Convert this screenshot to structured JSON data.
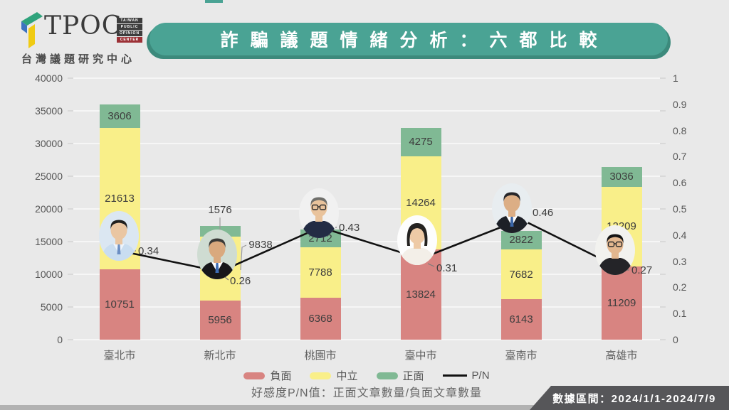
{
  "logo": {
    "acronym": "TPOC",
    "stack_lines": [
      "TAIWAN",
      "PUBLIC",
      "OPINION",
      "CENTER"
    ],
    "stack_colors": [
      "#3d3d3d",
      "#3d3d3d",
      "#3d3d3d",
      "#9c3136"
    ],
    "subtitle": "台灣議題研究中心",
    "mark_colors": {
      "green": "#2fa37c",
      "blue": "#3d74c0",
      "yellow": "#f0cb13"
    }
  },
  "title": {
    "text": "詐騙議題情緒分析：六都比較",
    "bg": "#4aa394",
    "shadow": "#3c8a7c",
    "color": "#ffffff"
  },
  "legend": {
    "items": [
      {
        "label": "負面",
        "type": "swatch",
        "color": "#d88481"
      },
      {
        "label": "中立",
        "type": "swatch",
        "color": "#f9ef89"
      },
      {
        "label": "正面",
        "type": "swatch",
        "color": "#80b994"
      },
      {
        "label": "P/N",
        "type": "line",
        "color": "#111111"
      }
    ]
  },
  "caption": "好感度P/N值：正面文章數量/負面文章數量",
  "banner": {
    "text": "數據區間：2024/1/1-2024/7/9",
    "bg": "#565659",
    "color": "#ffffff"
  },
  "colors": {
    "background": "#e9e9e9",
    "grid": "#f6f6f6",
    "axis_text": "#555555",
    "bottom_strip": "#b2b2b2"
  },
  "chart_data": {
    "type": "bar",
    "subtype": "stacked-bar-with-line",
    "title": "詐騙議題情緒分析：六都比較",
    "categories": [
      "臺北市",
      "新北市",
      "桃園市",
      "臺中市",
      "臺南市",
      "高雄市"
    ],
    "series": [
      {
        "name": "負面",
        "color": "#d88481",
        "values": [
          10751,
          5956,
          6368,
          13824,
          6143,
          11209
        ]
      },
      {
        "name": "中立",
        "color": "#f9ef89",
        "values": [
          21613,
          9838,
          7788,
          14264,
          7682,
          12209
        ]
      },
      {
        "name": "正面",
        "color": "#80b994",
        "values": [
          3606,
          1576,
          2712,
          4275,
          2822,
          3036
        ]
      }
    ],
    "line": {
      "name": "P/N",
      "color": "#111111",
      "values": [
        0.34,
        0.26,
        0.43,
        0.31,
        0.46,
        0.27
      ]
    },
    "left_axis": {
      "min": 0,
      "max": 40000,
      "step": 5000
    },
    "right_axis": {
      "min": 0,
      "max": 1,
      "step": 0.1
    },
    "grid": true,
    "legend_position": "bottom",
    "avatars": [
      {
        "name": "taipei-mayor-photo",
        "bg": "#dbe7f2",
        "hair": "#1f1f1f",
        "skin": "#eac6a2",
        "suit": "#c9ddf0",
        "shirt": "#eef4fb",
        "tie": "#6c8fc3",
        "glasses": false,
        "bob": false
      },
      {
        "name": "new-taipei-mayor-photo",
        "bg": "#cfdcd2",
        "hair": "#3a3a38",
        "skin": "#d9a97e",
        "suit": "#17171a",
        "shirt": "#ffffff",
        "tie": "#3e6db5",
        "glasses": false,
        "bob": false
      },
      {
        "name": "taoyuan-mayor-photo",
        "bg": "#f1f1f1",
        "hair": "#6f6f6b",
        "skin": "#e9c39c",
        "suit": "#232c44",
        "shirt": "#ffffff",
        "tie": "",
        "glasses": true,
        "bob": false
      },
      {
        "name": "taichung-mayor-photo",
        "bg": "#fdfdfd",
        "hair": "#242220",
        "skin": "#eecaa6",
        "suit": "#f3efe8",
        "shirt": "#f3efe8",
        "tie": "",
        "glasses": false,
        "bob": true
      },
      {
        "name": "tainan-mayor-photo",
        "bg": "#e8edf0",
        "hair": "#26262a",
        "skin": "#dcae85",
        "suit": "#1d2027",
        "shirt": "#ffffff",
        "tie": "#3b66a8",
        "glasses": false,
        "bob": false
      },
      {
        "name": "kaohsiung-mayor-photo",
        "bg": "#f2f2ef",
        "hair": "#131313",
        "skin": "#e3b78f",
        "suit": "#242428",
        "shirt": "#ffffff",
        "tie": "",
        "glasses": true,
        "bob": false
      }
    ]
  }
}
